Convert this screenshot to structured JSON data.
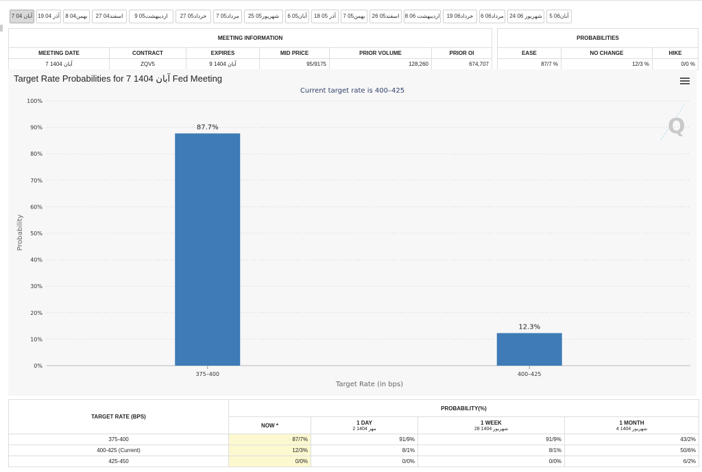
{
  "tabs": [
    "آبان 04 7",
    "آذر 04 19",
    "بهمن04 8",
    "اسفند04 27",
    "اردیبهشت05 9",
    "خرداد05 27",
    "مرداد05 7",
    "شهریور05 25",
    "آبان05 6",
    "آذر 05 18",
    "بهمن05 7",
    "اسفند05 26",
    "اردیبهشت 06 8",
    "خرداد06 19",
    "مرداد06 6",
    "شهریور 06 24",
    "آبان06 5"
  ],
  "meeting_info": {
    "title": "MEETING INFORMATION",
    "headers": [
      "MEETING DATE",
      "CONTRACT",
      "EXPIRES",
      "MID PRICE",
      "PRIOR VOLUME",
      "PRIOR OI"
    ],
    "row": [
      "آبان 1404 7",
      "ZQV5",
      "آبان 1404 9",
      "95/9175",
      "128,260",
      "674,707"
    ]
  },
  "probabilities": {
    "title": "PROBABILITIES",
    "headers": [
      "EASE",
      "NO CHANGE",
      "HIKE"
    ],
    "row": [
      "87/7 %",
      "12/3 %",
      "0/0 %"
    ]
  },
  "chart_header": {
    "title": "Target Rate Probabilities for 7 1404 آبان Fed Meeting",
    "subtitle": "Current target rate is 400–425"
  },
  "chart_data": {
    "type": "bar",
    "categories": [
      "375–400",
      "400–425"
    ],
    "values": [
      87.7,
      12.3
    ],
    "data_labels": [
      "87.7%",
      "12.3%"
    ],
    "xlabel": "Target Rate (in bps)",
    "ylabel": "Probability",
    "ylim": [
      0,
      100
    ],
    "yticks": [
      "0%",
      "10%",
      "20%",
      "30%",
      "40%",
      "50%",
      "60%",
      "70%",
      "80%",
      "90%",
      "100%"
    ],
    "bar_color": "#3f7bb6",
    "grid": true,
    "watermark": "Q"
  },
  "prob_table": {
    "rate_header": "TARGET RATE (BPS)",
    "prob_header": "PROBABILITY(%)",
    "columns": [
      {
        "label": "NOW *",
        "sub": ""
      },
      {
        "label": "1 DAY",
        "sub": "مهر 1404 2"
      },
      {
        "label": "1 WEEK",
        "sub": "شهریور 1404 28"
      },
      {
        "label": "1 MONTH",
        "sub": "شهریور 1404 4"
      }
    ],
    "rows": [
      {
        "rate": "375-400",
        "values": [
          "87/7%",
          "91/9%",
          "91/9%",
          "43/2%"
        ]
      },
      {
        "rate": "400-425 (Current)",
        "values": [
          "12/3%",
          "8/1%",
          "8/1%",
          "50/6%"
        ]
      },
      {
        "rate": "425-450",
        "values": [
          "0/0%",
          "0/0%",
          "0/0%",
          "6/2%"
        ]
      }
    ]
  }
}
